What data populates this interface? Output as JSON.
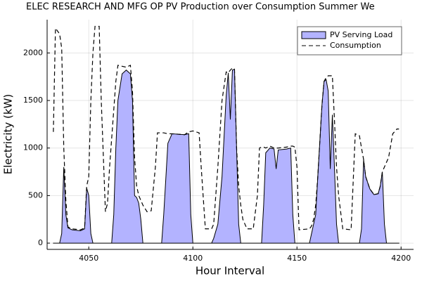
{
  "chart_data": {
    "type": "area-line",
    "title": "ELEC RESEARCH AND MFG OP PV Production over Consumption Summer We",
    "x_label": "Hour Interval",
    "y_label": "Electricity (kW)",
    "x": [
      4033,
      4034,
      4036,
      4037,
      4038,
      4039,
      4040,
      4042,
      4046,
      4048,
      4049,
      4050,
      4051,
      4052,
      4053,
      4055,
      4056,
      4058,
      4059,
      4060,
      4061,
      4062,
      4063,
      4064,
      4066,
      4068,
      4070,
      4071,
      4072,
      4073,
      4074,
      4075,
      4076,
      4078,
      4080,
      4082,
      4083,
      4085,
      4086,
      4088,
      4090,
      4096,
      4098,
      4099,
      4100,
      4103,
      4104,
      4106,
      4109,
      4110,
      4112,
      4114,
      4116,
      4117,
      4118,
      4119,
      4120,
      4121,
      4122,
      4123,
      4124,
      4126,
      4129,
      4131,
      4132,
      4133,
      4134,
      4135,
      4137,
      4139,
      4140,
      4141,
      4145,
      4147,
      4148,
      4149,
      4150,
      4151,
      4156,
      4157,
      4158,
      4159,
      4160,
      4162,
      4163,
      4164,
      4165,
      4166,
      4167,
      4168,
      4169,
      4170,
      4172,
      4176,
      4178,
      4180,
      4181,
      4182,
      4183,
      4185,
      4187,
      4189,
      4190,
      4191,
      4192,
      4193,
      4194,
      4196,
      4198,
      4199
    ],
    "series": [
      {
        "name": "PV Serving Load",
        "color": "#b3b3ff",
        "values": [
          0,
          0,
          0,
          100,
          800,
          300,
          160,
          140,
          130,
          150,
          580,
          500,
          100,
          0,
          0,
          0,
          0,
          0,
          0,
          0,
          0,
          300,
          1000,
          1500,
          1780,
          1820,
          1780,
          1500,
          500,
          480,
          420,
          250,
          0,
          0,
          0,
          0,
          0,
          0,
          300,
          1050,
          1150,
          1140,
          1150,
          300,
          0,
          0,
          0,
          0,
          0,
          50,
          200,
          700,
          1550,
          1790,
          1300,
          1820,
          1830,
          1000,
          200,
          0,
          0,
          0,
          0,
          0,
          0,
          0,
          400,
          950,
          1000,
          990,
          780,
          980,
          990,
          1000,
          300,
          0,
          0,
          0,
          0,
          100,
          200,
          300,
          700,
          1450,
          1700,
          1720,
          1600,
          780,
          1350,
          800,
          200,
          0,
          0,
          0,
          0,
          0,
          150,
          880,
          700,
          570,
          510,
          520,
          600,
          750,
          200,
          0,
          0,
          0,
          0,
          0
        ]
      },
      {
        "name": "Consumption",
        "color": "#000000",
        "values": [
          1170,
          2260,
          2200,
          2050,
          1000,
          450,
          170,
          150,
          140,
          160,
          600,
          700,
          1500,
          2000,
          2280,
          2280,
          1500,
          330,
          420,
          800,
          1100,
          1400,
          1700,
          1870,
          1860,
          1850,
          1870,
          1600,
          900,
          600,
          500,
          450,
          400,
          330,
          340,
          800,
          1160,
          1160,
          1160,
          1150,
          1150,
          1140,
          1170,
          1175,
          1180,
          1160,
          800,
          150,
          150,
          200,
          800,
          1500,
          1800,
          1790,
          1820,
          1840,
          1830,
          1000,
          600,
          400,
          250,
          150,
          150,
          500,
          1000,
          1010,
          1010,
          1000,
          1020,
          1000,
          1000,
          1000,
          1010,
          1020,
          1020,
          1010,
          800,
          140,
          150,
          180,
          250,
          400,
          700,
          1450,
          1700,
          1740,
          1760,
          1760,
          1760,
          1300,
          800,
          500,
          150,
          140,
          1150,
          1130,
          1000,
          880,
          700,
          570,
          510,
          520,
          600,
          750,
          800,
          850,
          900,
          1150,
          1200,
          1200
        ]
      }
    ],
    "xlim": [
      4030,
      4206
    ],
    "ylim": [
      -66,
      2350
    ],
    "xticks": [
      4050,
      4100,
      4150,
      4200
    ],
    "yticks": [
      0,
      500,
      1000,
      1500,
      2000
    ],
    "grid": true,
    "legend": "top-right"
  }
}
